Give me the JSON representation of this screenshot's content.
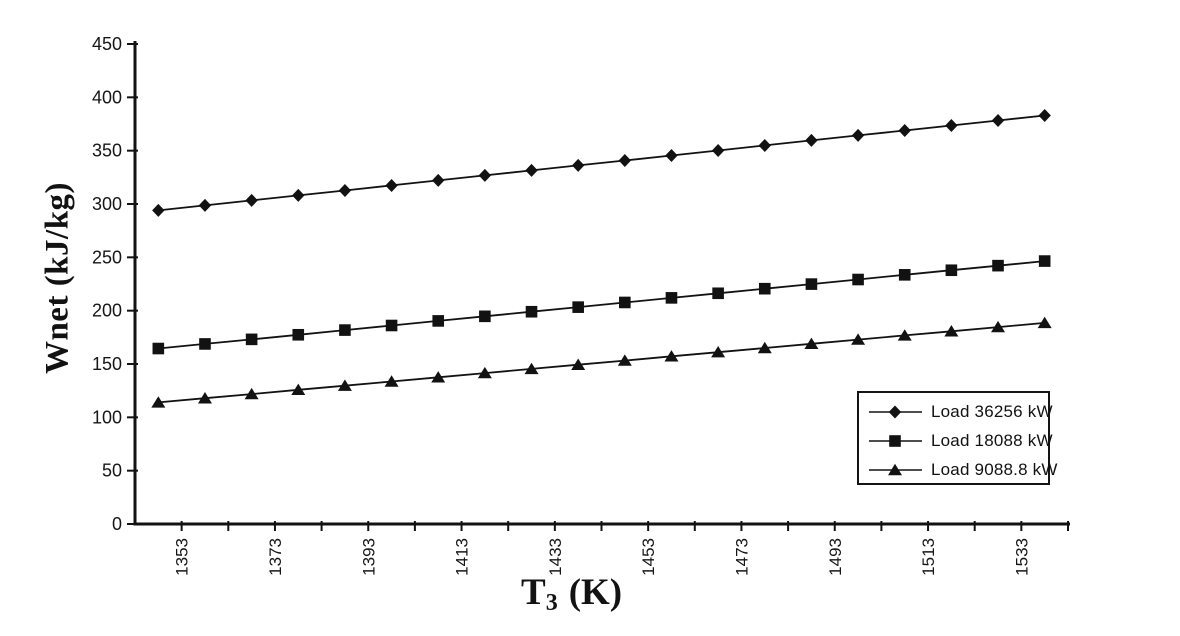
{
  "figure": {
    "background": "#ffffff",
    "ink_color": "#121212"
  },
  "chart_data": {
    "type": "line",
    "title": "",
    "xlabel": {
      "base": "T",
      "subscript": "3",
      "unit": "(K)"
    },
    "ylabel": "Wnet (kJ/kg)",
    "grid": false,
    "legend_position": "inside-right-middle",
    "x_axis": {
      "min": 1343,
      "max": 1543,
      "tick_step": 10,
      "label_ticks": [
        1353,
        1373,
        1393,
        1413,
        1433,
        1453,
        1473,
        1493,
        1513,
        1533
      ],
      "tick_label_rotation_deg": -90
    },
    "y_axis": {
      "min": 0,
      "max": 450,
      "ticks": [
        0,
        50,
        100,
        150,
        200,
        250,
        300,
        350,
        400,
        450
      ]
    },
    "x": [
      1348,
      1358,
      1368,
      1378,
      1388,
      1398,
      1408,
      1418,
      1428,
      1438,
      1448,
      1458,
      1468,
      1478,
      1488,
      1498,
      1508,
      1518,
      1528,
      1538
    ],
    "series": [
      {
        "name": "Load 36256 kW",
        "marker": "diamond",
        "color": "#121212",
        "values": [
          294,
          298.7,
          303.4,
          308.1,
          312.7,
          317.4,
          322.1,
          326.8,
          331.5,
          336.2,
          340.8,
          345.5,
          350.2,
          354.9,
          359.6,
          364.3,
          368.9,
          373.6,
          378.3,
          383
        ]
      },
      {
        "name": "Load 18088 kW",
        "marker": "square",
        "color": "#121212",
        "values": [
          164.5,
          168.8,
          173.1,
          177.4,
          181.8,
          186.1,
          190.4,
          194.7,
          199,
          203.3,
          207.7,
          212,
          216.3,
          220.6,
          224.9,
          229.2,
          233.6,
          237.9,
          242.2,
          246.5
        ]
      },
      {
        "name": "Load 9088.8 kW",
        "marker": "triangle",
        "color": "#121212",
        "values": [
          114,
          117.9,
          121.8,
          125.8,
          129.7,
          133.6,
          137.5,
          141.5,
          145.4,
          149.3,
          153.2,
          157.2,
          161.1,
          165,
          168.9,
          172.9,
          176.8,
          180.7,
          184.6,
          188.5
        ]
      }
    ]
  }
}
